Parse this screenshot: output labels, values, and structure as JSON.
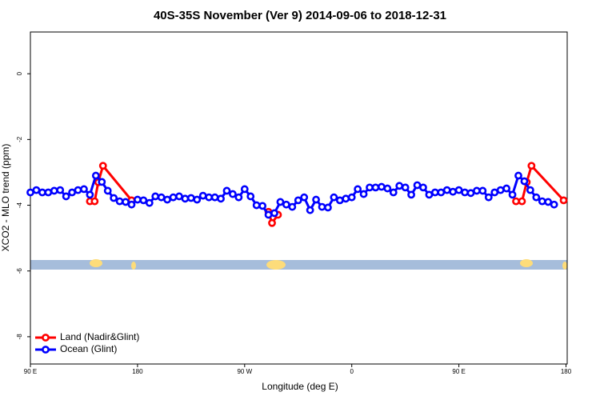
{
  "chart_data": {
    "type": "line",
    "title": "40S-35S November (Ver 9)   2014-09-06 to 2018-12-31",
    "x_label": "Longitude (deg E)",
    "y_label": "XCO2 - MLO trend (ppm)",
    "xlim": [
      90,
      541
    ],
    "ylim": [
      -8.83,
      1.27
    ],
    "xticks": [
      {
        "value": 90,
        "label": "90 E"
      },
      180,
      {
        "value": 270,
        "label": "90 W"
      },
      {
        "value": 360,
        "label": "0"
      },
      {
        "value": 450,
        "label": "90 E"
      },
      {
        "value": 540,
        "label": "180"
      }
    ],
    "yticks": [
      0,
      -2,
      -4,
      -6,
      -8
    ],
    "legend": "bottom-left",
    "series": [
      {
        "name": "Land (Nadir&Glint)",
        "color": "#ff0000",
        "x": [
          140,
          144,
          147,
          151,
          175,
          null,
          290,
          293,
          298,
          null,
          498,
          503,
          507,
          511,
          538
        ],
        "values": [
          -3.88,
          -3.88,
          -3.3,
          -2.8,
          -3.85,
          null,
          -4.2,
          -4.54,
          -4.29,
          null,
          -3.88,
          -3.88,
          -3.3,
          -2.8,
          -3.85
        ]
      },
      {
        "name": "Ocean (Glint)",
        "color": "#0000ff",
        "x": [
          90,
          95,
          100,
          105,
          110,
          115,
          120,
          125,
          130,
          135,
          140,
          145,
          150,
          155,
          160,
          165,
          170,
          175,
          180,
          185,
          190,
          195,
          200,
          205,
          210,
          215,
          220,
          225,
          230,
          235,
          240,
          245,
          250,
          255,
          260,
          265,
          270,
          275,
          280,
          285,
          290,
          295,
          300,
          305,
          310,
          315,
          320,
          325,
          330,
          335,
          340,
          345,
          350,
          355,
          360,
          365,
          370,
          375,
          380,
          385,
          390,
          395,
          400,
          405,
          410,
          415,
          420,
          425,
          430,
          435,
          440,
          445,
          450,
          455,
          460,
          465,
          470,
          475,
          480,
          485,
          490,
          495,
          500,
          505,
          510,
          515,
          520,
          525,
          530
        ],
        "values": [
          -3.61,
          -3.54,
          -3.61,
          -3.61,
          -3.56,
          -3.54,
          -3.73,
          -3.61,
          -3.54,
          -3.51,
          -3.68,
          -3.1,
          -3.29,
          -3.56,
          -3.78,
          -3.88,
          -3.9,
          -3.98,
          -3.83,
          -3.85,
          -3.93,
          -3.73,
          -3.76,
          -3.83,
          -3.76,
          -3.73,
          -3.8,
          -3.78,
          -3.83,
          -3.71,
          -3.76,
          -3.76,
          -3.8,
          -3.56,
          -3.66,
          -3.76,
          -3.51,
          -3.73,
          -4.0,
          -4.02,
          -4.29,
          -4.24,
          -3.9,
          -3.98,
          -4.05,
          -3.85,
          -3.76,
          -4.15,
          -3.83,
          -4.05,
          -4.07,
          -3.76,
          -3.85,
          -3.8,
          -3.76,
          -3.51,
          -3.66,
          -3.46,
          -3.46,
          -3.44,
          -3.49,
          -3.61,
          -3.41,
          -3.46,
          -3.68,
          -3.39,
          -3.46,
          -3.68,
          -3.61,
          -3.61,
          -3.54,
          -3.59,
          -3.54,
          -3.61,
          -3.63,
          -3.56,
          -3.56,
          -3.76,
          -3.61,
          -3.54,
          -3.49,
          -3.68,
          -3.1,
          -3.27,
          -3.54,
          -3.76,
          -3.88,
          -3.9,
          -3.98
        ]
      }
    ]
  }
}
